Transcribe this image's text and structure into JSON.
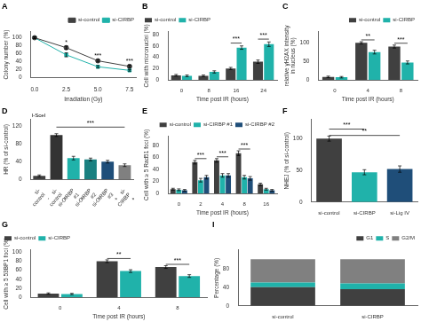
{
  "chart_data": [
    {
      "type": "line",
      "title": "A",
      "xlabel": "Irradiation (Gy)",
      "ylabel": "Colony number (%)",
      "x": [
        0,
        2.5,
        5.0,
        7.5
      ],
      "series": [
        {
          "name": "si-control",
          "color": "#404040",
          "marker": "circle",
          "values": [
            100,
            75,
            42,
            28
          ],
          "errors": [
            2,
            4,
            3,
            3
          ]
        },
        {
          "name": "si-CIRBP",
          "color": "#20B2AA",
          "marker": "square",
          "values": [
            100,
            57,
            27,
            18
          ],
          "errors": [
            2,
            5,
            3,
            2
          ]
        }
      ],
      "xlim": [
        -0.3,
        8
      ],
      "xticks": [
        {
          "value": 0,
          "label": "0.0"
        },
        2.5,
        {
          "value": 5.0,
          "label": "5.0"
        },
        7.5
      ],
      "ylim": [
        0,
        115
      ],
      "yticks": [
        0,
        20,
        40,
        60,
        80,
        100
      ],
      "legend": "upper right",
      "grid": false,
      "annotations": [
        {
          "text": "*",
          "x": 2.5,
          "y": 79
        },
        {
          "text": "***",
          "x": 5.0,
          "y": 46
        },
        {
          "text": "***",
          "x": 7.5,
          "y": 32
        }
      ]
    },
    {
      "type": "bar",
      "title": "B",
      "xlabel": "Time post IR (hours)",
      "ylabel": "Cell with micronuclei (%)",
      "categories": [
        "0",
        "8",
        "16",
        "24"
      ],
      "series": [
        {
          "name": "si-control",
          "color": "#404040",
          "values": [
            8,
            7,
            20,
            32
          ],
          "errors": [
            1.5,
            1.5,
            2,
            3
          ]
        },
        {
          "name": "si-CIRBP",
          "color": "#20B2AA",
          "values": [
            7,
            14,
            57,
            63
          ],
          "errors": [
            1.5,
            2,
            3,
            4
          ]
        }
      ],
      "ylim": [
        0,
        85
      ],
      "yticks": [
        0,
        20,
        40,
        60,
        80
      ],
      "legend": "upper left",
      "grid": false,
      "annotations": [
        {
          "text": "***",
          "x": "16",
          "y": 66,
          "line_y": 65
        },
        {
          "text": "***",
          "x": "24",
          "y": 73,
          "line_y": 72
        }
      ]
    },
    {
      "type": "bar",
      "title": "C",
      "xlabel": "Time post IR (hours)",
      "ylabel": "relative γH2AX intensity\nin nucleus (%)",
      "categories": [
        "0",
        "4",
        "8"
      ],
      "series": [
        {
          "name": "si-control",
          "color": "#404040",
          "values": [
            8,
            100,
            90
          ],
          "errors": [
            2,
            3,
            4
          ]
        },
        {
          "name": "si-CIRBP",
          "color": "#20B2AA",
          "values": [
            7,
            75,
            47
          ],
          "errors": [
            2,
            5,
            4
          ]
        }
      ],
      "ylim": [
        0,
        130
      ],
      "yticks": [
        0,
        50,
        100
      ],
      "legend": "upper right",
      "grid": false,
      "annotations": [
        {
          "text": "**",
          "x": "4",
          "y": 109,
          "line_y": 108
        },
        {
          "text": "***",
          "x": "8",
          "y": 100,
          "line_y": 99
        }
      ]
    },
    {
      "type": "bar",
      "title": "D",
      "ylabel": "HR (% of si-control)",
      "categories": [
        "si-\ncontrol\n-",
        "si-\ncontrol\n+",
        "si-CIRBP\n#1\n+",
        "si-CIRBP\n#2\n+",
        "si-CIRBP\n#3\n+",
        "si-\nCIRBP\n+"
      ],
      "values": [
        8,
        100,
        48,
        45,
        40,
        32
      ],
      "errors": [
        2,
        3,
        4,
        3,
        3,
        3
      ],
      "colors": [
        "#404040",
        "#333333",
        "#20B2AA",
        "#1A8080",
        "#1F4E79",
        "#808080"
      ],
      "ylim": [
        0,
        135
      ],
      "yticks": [
        0,
        40,
        80,
        120
      ],
      "grid": false,
      "annotations": [
        {
          "text": "I-SceI"
        },
        {
          "text": "***",
          "from": "si-\ncontrol\n+",
          "to": "si-\nCIRBP\n+",
          "y": 120,
          "line_y": 118
        }
      ]
    },
    {
      "type": "bar",
      "title": "E",
      "xlabel": "Time post IR (hours)",
      "ylabel": "Cell with ≥ 5 Rad51 foci (%)",
      "categories": [
        "0",
        "2",
        "4",
        "8",
        "16"
      ],
      "series": [
        {
          "name": "si-control",
          "color": "#404040",
          "values": [
            7,
            52,
            55,
            67,
            15
          ],
          "errors": [
            1.5,
            3,
            3,
            4,
            2
          ]
        },
        {
          "name": "si-CIRBP #1",
          "color": "#20B2AA",
          "values": [
            6,
            22,
            30,
            27,
            7
          ],
          "errors": [
            1.5,
            3,
            3,
            3,
            1.5
          ]
        },
        {
          "name": "si-CIRBP #2",
          "color": "#1F4E79",
          "values": [
            5,
            27,
            30,
            25,
            5
          ],
          "errors": [
            1.5,
            3,
            3,
            3,
            1.5
          ]
        }
      ],
      "ylim": [
        0,
        95
      ],
      "yticks": [
        0,
        20,
        40,
        60,
        80
      ],
      "legend": "upper right",
      "grid": false,
      "annotations": [
        {
          "text": "***",
          "x": "2",
          "y": 59,
          "line_y": 58
        },
        {
          "text": "***",
          "x": "4",
          "y": 62,
          "line_y": 61
        },
        {
          "text": "***",
          "x": "8",
          "y": 75,
          "line_y": 74
        }
      ]
    },
    {
      "type": "bar",
      "title": "F",
      "ylabel": "NHEJ (% of si-control)",
      "categories": [
        "si-control",
        "si-CIRBP",
        "si-Lig IV"
      ],
      "values": [
        100,
        47,
        52
      ],
      "errors": [
        4,
        4,
        5
      ],
      "colors": [
        "#404040",
        "#20B2AA",
        "#1F4E79"
      ],
      "ylim": [
        0,
        130
      ],
      "yticks": [
        0,
        50,
        100
      ],
      "grid": false,
      "annotations": [
        {
          "text": "***",
          "from": "si-control",
          "to": "si-CIRBP",
          "y": 117,
          "line_y": 115
        },
        {
          "text": "**",
          "from": "si-control",
          "to": "si-Lig IV",
          "y": 107,
          "line_y": 105
        }
      ]
    },
    {
      "type": "bar",
      "title": "G",
      "xlabel": "Time post IR (hours)",
      "ylabel": "Cell with ≥ 5 53BP1 foci (%)",
      "categories": [
        "0",
        "4",
        "8"
      ],
      "series": [
        {
          "name": "si-control",
          "color": "#404040",
          "values": [
            8,
            80,
            67
          ],
          "errors": [
            1.5,
            3,
            3
          ]
        },
        {
          "name": "si-CIRBP",
          "color": "#20B2AA",
          "values": [
            7,
            58,
            47
          ],
          "errors": [
            1.5,
            3,
            3
          ]
        }
      ],
      "ylim": [
        0,
        105
      ],
      "yticks": [
        0,
        20,
        40,
        60,
        80,
        100
      ],
      "legend": "upper left",
      "grid": false,
      "annotations": [
        {
          "text": "**",
          "x": "4",
          "y": 87,
          "line_y": 86
        },
        {
          "text": "***",
          "x": "8",
          "y": 74,
          "line_y": 73
        }
      ]
    },
    {
      "type": "bar",
      "title": "I",
      "ylabel": "Percentage (%)",
      "stacked": true,
      "categories": [
        "si-control",
        "si-CIRBP"
      ],
      "series": [
        {
          "name": "G1",
          "color": "#404040",
          "values": [
            40,
            36
          ]
        },
        {
          "name": "S",
          "color": "#20B2AA",
          "values": [
            10,
            12
          ]
        },
        {
          "name": "G2/M",
          "color": "#808080",
          "values": [
            50,
            52
          ]
        }
      ],
      "ylim": [
        0,
        120
      ],
      "yticks": [
        0,
        40,
        80
      ],
      "legend": "upper right",
      "grid": false
    }
  ]
}
